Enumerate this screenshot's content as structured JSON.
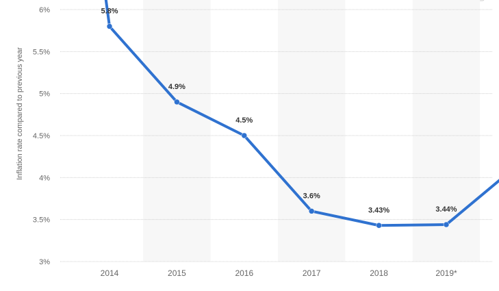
{
  "chart_data": {
    "type": "line",
    "categories": [
      "2014",
      "2015",
      "2016",
      "2017",
      "2018",
      "2019*"
    ],
    "x": [
      "2014",
      "2015",
      "2016",
      "2017",
      "2018",
      "2019*"
    ],
    "series": [
      {
        "values": [
          5.8,
          4.9,
          4.5,
          3.6,
          3.43,
          3.44
        ],
        "labels": [
          "5.8%",
          "4.9%",
          "4.5%",
          "3.6%",
          "3.43%",
          "3.44%"
        ],
        "color": "#2f72d0"
      }
    ],
    "ylabel": "Inflation rate compared to previous year",
    "ylim": [
      3,
      6
    ],
    "yticks": [
      {
        "value": 6,
        "label": "6%"
      },
      {
        "value": 5.5,
        "label": "5.5%"
      },
      {
        "value": 5,
        "label": "5%"
      },
      {
        "value": 4.5,
        "label": "4.5%"
      },
      {
        "value": 4,
        "label": "4%"
      },
      {
        "value": 3.5,
        "label": "3.5%"
      },
      {
        "value": 3,
        "label": "3%"
      }
    ],
    "grid": true,
    "alternating_column_shading": true,
    "colors": {
      "line": "#2f72d0",
      "band": "#f7f7f7",
      "grid": "#cfcfcf"
    }
  }
}
